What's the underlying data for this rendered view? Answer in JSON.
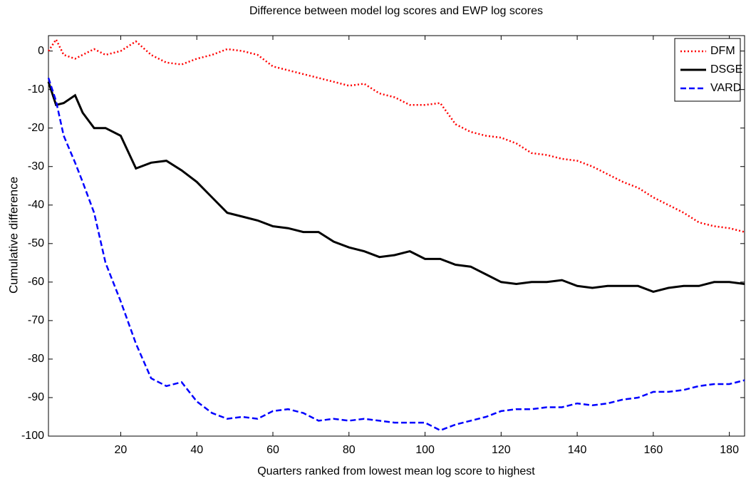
{
  "chart_data": {
    "type": "line",
    "title": "Difference between model log scores and EWP log scores",
    "x_label": "Quarters ranked from lowest mean log score to highest",
    "y_label": "Cumulative difference",
    "x": [
      1,
      3,
      5,
      8,
      10,
      13,
      16,
      20,
      24,
      28,
      32,
      36,
      40,
      44,
      48,
      52,
      56,
      60,
      64,
      68,
      72,
      76,
      80,
      84,
      88,
      92,
      96,
      100,
      104,
      108,
      112,
      116,
      120,
      124,
      128,
      132,
      136,
      140,
      144,
      148,
      152,
      156,
      160,
      164,
      168,
      172,
      176,
      180,
      184
    ],
    "series": [
      {
        "name": "DFM",
        "color": "#ff0000",
        "dash": "dotted",
        "values": [
          0,
          3,
          -1,
          -2,
          -1,
          0.5,
          -1,
          0,
          2.5,
          -1,
          -3,
          -3.5,
          -2,
          -1,
          0.5,
          0,
          -1,
          -4,
          -5,
          -6,
          -7,
          -8,
          -9,
          -8.5,
          -11,
          -12,
          -14,
          -14,
          -13.5,
          -19,
          -21,
          -22,
          -22.5,
          -24,
          -26.5,
          -27,
          -28,
          -28.5,
          -30,
          -32,
          -34,
          -35.5,
          -38,
          -40,
          -42,
          -44.5,
          -45.5,
          -46,
          -47
        ]
      },
      {
        "name": "DSGE",
        "color": "#000000",
        "dash": "solid",
        "values": [
          -8,
          -14,
          -13.5,
          -11.5,
          -16,
          -20,
          -20,
          -22,
          -30.5,
          -29,
          -28.5,
          -31,
          -34,
          -38,
          -42,
          -43,
          -44,
          -45.5,
          -46,
          -47,
          -47,
          -49.5,
          -51,
          -52,
          -53.5,
          -53,
          -52,
          -54,
          -54,
          -55.5,
          -56,
          -58,
          -60,
          -60.5,
          -60,
          -60,
          -59.5,
          -61,
          -61.5,
          -61,
          -61,
          -61,
          -62.5,
          -61.5,
          -61,
          -61,
          -60,
          -60,
          -60.5
        ]
      },
      {
        "name": "VARD",
        "color": "#0000ff",
        "dash": "dashed",
        "values": [
          -7,
          -13,
          -22,
          -29,
          -34,
          -42,
          -55,
          -65,
          -76,
          -85,
          -87,
          -86,
          -91,
          -94,
          -95.5,
          -95,
          -95.5,
          -93.5,
          -93,
          -94,
          -96,
          -95.5,
          -96,
          -95.5,
          -96,
          -96.5,
          -96.5,
          -96.5,
          -98.5,
          -97,
          -96,
          -95,
          -93.5,
          -93,
          -93,
          -92.5,
          -92.5,
          -91.5,
          -92,
          -91.5,
          -90.5,
          -90,
          -88.5,
          -88.5,
          -88,
          -87,
          -86.5,
          -86.5,
          -85.5
        ]
      }
    ],
    "xlim": [
      1,
      184
    ],
    "ylim": [
      -100,
      4
    ],
    "xticks": [
      20,
      40,
      60,
      80,
      100,
      120,
      140,
      160,
      180
    ],
    "yticks": [
      0,
      -10,
      -20,
      -30,
      -40,
      -50,
      -60,
      -70,
      -80,
      -90,
      -100
    ],
    "legend": "upper right"
  }
}
